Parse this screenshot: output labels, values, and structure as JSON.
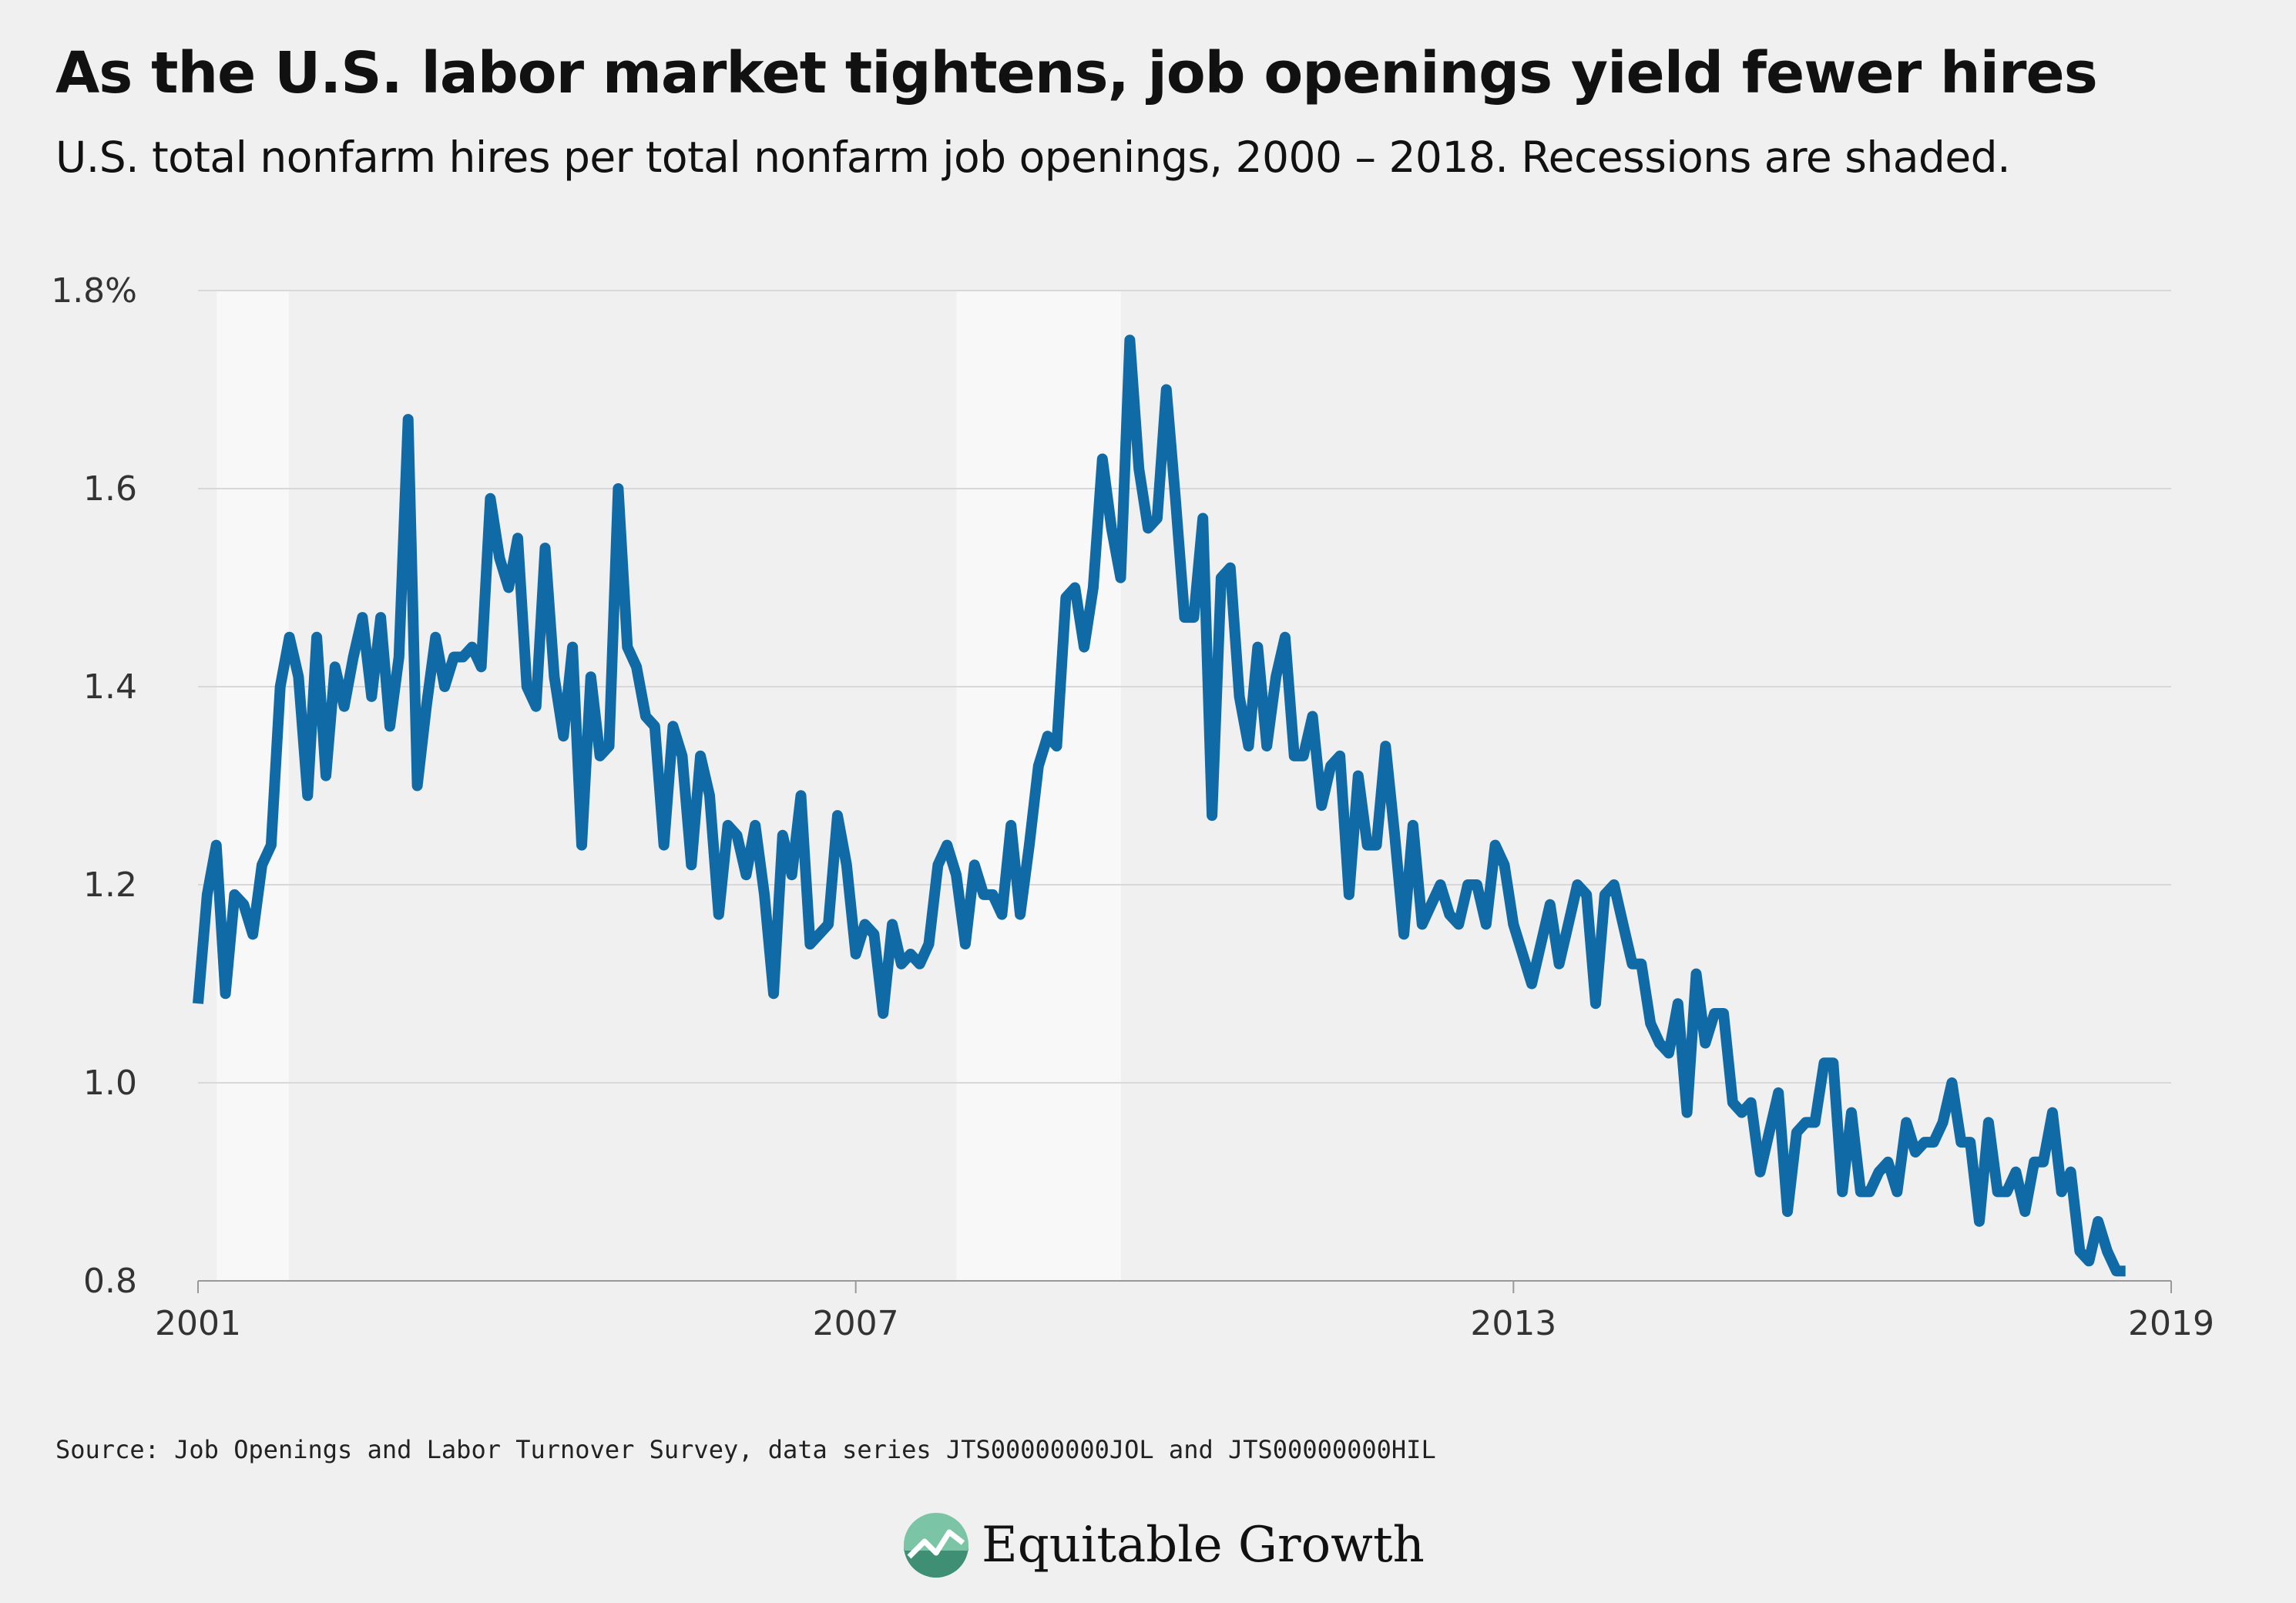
{
  "title": "As the U.S. labor market tightens, job openings yield fewer hires",
  "subtitle": "U.S. total nonfarm hires per total nonfarm job openings, 2000 – 2018. Recessions are shaded.",
  "source": "Source: Job Openings and Labor Turnover Survey, data series JTS00000000JOL and JTS00000000HIL",
  "brand": {
    "name": "Equitable Growth",
    "logo_icon": "growth-chart-logo-icon"
  },
  "colors": {
    "line": "#0f6aa6",
    "background": "#f0f0f0",
    "recession": "#f8f8f8",
    "grid": "#d8d8d8"
  },
  "chart_data": {
    "type": "line",
    "title": "As the U.S. labor market tightens, job openings yield fewer hires",
    "xlabel": "",
    "ylabel": "",
    "xlim": [
      2001,
      2019
    ],
    "ylim": [
      0.8,
      1.8
    ],
    "y_ticks": [
      {
        "value": 1.8,
        "label": "1.8%"
      },
      {
        "value": 1.6,
        "label": "1.6"
      },
      {
        "value": 1.4,
        "label": "1.4"
      },
      {
        "value": 1.2,
        "label": "1.2"
      },
      {
        "value": 1.0,
        "label": "1.0"
      },
      {
        "value": 0.8,
        "label": "0.8"
      }
    ],
    "x_ticks": [
      {
        "value": 2001,
        "label": "2001"
      },
      {
        "value": 2007,
        "label": "2007"
      },
      {
        "value": 2013,
        "label": "2013"
      },
      {
        "value": 2019,
        "label": "2019"
      }
    ],
    "grid": true,
    "recessions": [
      [
        2001.17,
        2001.83
      ],
      [
        2007.92,
        2009.42
      ]
    ],
    "series": [
      {
        "start_year": 2001,
        "step_months": 1,
        "values": [
          1.08,
          1.19,
          1.24,
          1.09,
          1.19,
          1.18,
          1.15,
          1.22,
          1.24,
          1.4,
          1.45,
          1.41,
          1.29,
          1.45,
          1.31,
          1.42,
          1.38,
          1.43,
          1.47,
          1.39,
          1.47,
          1.36,
          1.43,
          1.67,
          1.3,
          1.38,
          1.45,
          1.4,
          1.43,
          1.43,
          1.44,
          1.42,
          1.59,
          1.53,
          1.5,
          1.55,
          1.4,
          1.38,
          1.54,
          1.41,
          1.35,
          1.44,
          1.24,
          1.41,
          1.33,
          1.34,
          1.6,
          1.44,
          1.42,
          1.37,
          1.36,
          1.24,
          1.36,
          1.33,
          1.22,
          1.33,
          1.29,
          1.17,
          1.26,
          1.25,
          1.21,
          1.26,
          1.19,
          1.09,
          1.25,
          1.21,
          1.29,
          1.14,
          1.15,
          1.16,
          1.27,
          1.22,
          1.13,
          1.16,
          1.15,
          1.07,
          1.16,
          1.12,
          1.13,
          1.12,
          1.14,
          1.22,
          1.24,
          1.21,
          1.14,
          1.22,
          1.19,
          1.19,
          1.17,
          1.26,
          1.17,
          1.24,
          1.32,
          1.35,
          1.34,
          1.49,
          1.5,
          1.44,
          1.5,
          1.63,
          1.56,
          1.51,
          1.75,
          1.62,
          1.56,
          1.57,
          1.7,
          1.59,
          1.47,
          1.47,
          1.57,
          1.27,
          1.51,
          1.52,
          1.39,
          1.34,
          1.44,
          1.34,
          1.41,
          1.45,
          1.33,
          1.33,
          1.37,
          1.28,
          1.32,
          1.33,
          1.19,
          1.31,
          1.24,
          1.24,
          1.34,
          1.25,
          1.15,
          1.26,
          1.16,
          1.18,
          1.2,
          1.17,
          1.16,
          1.2,
          1.2,
          1.16,
          1.24,
          1.22,
          1.16,
          1.13,
          1.1,
          1.14,
          1.18,
          1.12,
          1.16,
          1.2,
          1.19,
          1.08,
          1.19,
          1.2,
          1.16,
          1.12,
          1.12,
          1.06,
          1.04,
          1.03,
          1.08,
          0.97,
          1.11,
          1.04,
          1.07,
          1.07,
          0.98,
          0.97,
          0.98,
          0.91,
          0.95,
          0.99,
          0.87,
          0.95,
          0.96,
          0.96,
          1.02,
          1.02,
          0.89,
          0.97,
          0.89,
          0.89,
          0.91,
          0.92,
          0.89,
          0.96,
          0.93,
          0.94,
          0.94,
          0.96,
          1.0,
          0.94,
          0.94,
          0.86,
          0.96,
          0.89,
          0.89,
          0.91,
          0.87,
          0.92,
          0.92,
          0.97,
          0.89,
          0.91,
          0.83,
          0.82,
          0.86,
          0.83,
          0.81,
          0.81
        ]
      }
    ]
  }
}
